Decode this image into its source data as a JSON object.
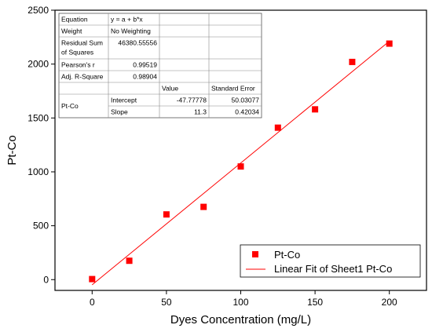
{
  "chart_data": {
    "type": "scatter",
    "xlabel": "Dyes Concentration  (mg/L)",
    "ylabel": "Pt-Co",
    "xlim": [
      -25,
      225
    ],
    "ylim": [
      -100,
      2500
    ],
    "xticks": [
      0,
      50,
      100,
      150,
      200
    ],
    "yticks": [
      0,
      500,
      1000,
      1500,
      2000,
      2500
    ],
    "grid": false,
    "legend_position": "bottom-right",
    "series": [
      {
        "name": "Pt-Co",
        "marker": "square",
        "color": "#ff0000",
        "x": [
          0,
          25,
          50,
          75,
          100,
          125,
          150,
          175,
          200
        ],
        "y": [
          5,
          175,
          605,
          675,
          1050,
          1410,
          1580,
          2020,
          2190
        ]
      },
      {
        "name": "Linear Fit of Sheet1 Pt-Co",
        "kind": "line",
        "color": "#ff0000",
        "x": [
          0,
          200
        ],
        "y": [
          -47.77778,
          2212.22222
        ]
      }
    ],
    "fit_table": {
      "rows": [
        [
          "Equation",
          "y = a + b*x",
          "",
          ""
        ],
        [
          "Weight",
          "No Weighting",
          "",
          ""
        ],
        [
          "Residual Sum\nof Squares",
          "46380.55556",
          "",
          ""
        ],
        [
          "Pearson's r",
          "0.99519",
          "",
          ""
        ],
        [
          "Adj. R-Square",
          "0.98904",
          "",
          ""
        ],
        [
          "",
          "",
          "Value",
          "Standard Error"
        ],
        [
          "Pt-Co",
          "Intercept",
          "-47.77778",
          "50.03077"
        ],
        [
          "",
          "Slope",
          "11.3",
          "0.42034"
        ]
      ]
    }
  }
}
